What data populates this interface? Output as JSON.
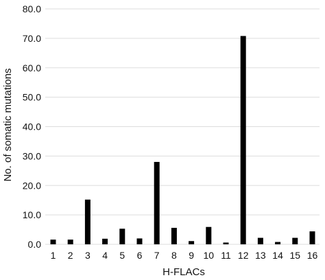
{
  "chart_data": {
    "type": "bar",
    "title": "",
    "xlabel": "H-FLACs",
    "ylabel": "No. of somatic mutations",
    "categories": [
      "1",
      "2",
      "3",
      "4",
      "5",
      "6",
      "7",
      "8",
      "9",
      "10",
      "11",
      "12",
      "13",
      "14",
      "15",
      "16"
    ],
    "values": [
      1.6,
      1.6,
      15.2,
      1.9,
      5.3,
      2.0,
      28.0,
      5.6,
      1.1,
      5.9,
      0.6,
      70.8,
      2.2,
      0.8,
      2.2,
      4.4
    ],
    "ylim": [
      0,
      80
    ],
    "yticks": [
      "0.0",
      "10.0",
      "20.0",
      "30.0",
      "40.0",
      "50.0",
      "60.0",
      "70.0",
      "80.0"
    ],
    "grid": true,
    "legend": "none",
    "colors": {
      "bar": "#000000",
      "grid": "#dddddd",
      "text": "#111111"
    }
  }
}
